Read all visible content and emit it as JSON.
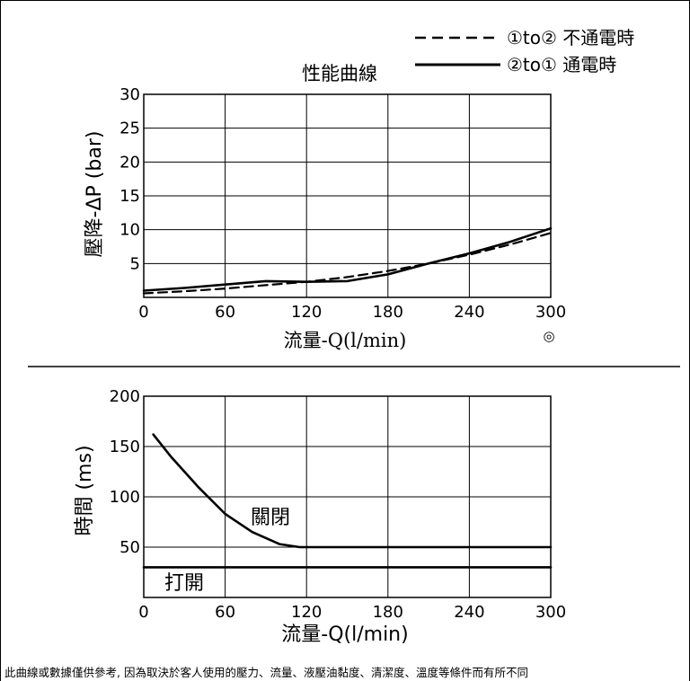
{
  "title": "性能曲線",
  "legend": [
    {
      "label": "①to② 不通電時",
      "style": "dashed"
    },
    {
      "label": "②to① 通電時",
      "style": "solid"
    }
  ],
  "symbol": "◎",
  "footnote": "此曲線或數據僅供參考, 因為取決於客人使用的壓力、流量、液壓油黏度、清潔度、溫度等條件而有所不同",
  "chart_data": [
    {
      "type": "line",
      "title": "性能曲線",
      "xlabel": "流量-Q(l/min)",
      "ylabel": "壓降-ΔP (bar)",
      "xlim": [
        0,
        300
      ],
      "ylim": [
        0,
        30
      ],
      "x_ticks": [
        0,
        60,
        120,
        180,
        240,
        300
      ],
      "y_ticks": [
        5,
        10,
        15,
        20,
        25,
        30
      ],
      "grid": true,
      "legend_position": "top-right",
      "series": [
        {
          "name": "①to② 不通電時",
          "style": "dashed",
          "x": [
            0,
            30,
            60,
            90,
            120,
            150,
            180,
            210,
            240,
            270,
            300
          ],
          "y": [
            0.6,
            0.9,
            1.3,
            1.8,
            2.3,
            3.0,
            3.9,
            5.0,
            6.3,
            7.8,
            9.5
          ]
        },
        {
          "name": "②to① 通電時",
          "style": "solid",
          "x": [
            0,
            30,
            60,
            90,
            120,
            150,
            180,
            210,
            240,
            270,
            300
          ],
          "y": [
            1.0,
            1.4,
            1.9,
            2.4,
            2.3,
            2.4,
            3.4,
            5.0,
            6.5,
            8.2,
            10.2
          ]
        }
      ]
    },
    {
      "type": "line",
      "xlabel": "流量-Q(l/min)",
      "ylabel": "時間 (ms)",
      "xlim": [
        0,
        300
      ],
      "ylim": [
        0,
        200
      ],
      "x_ticks": [
        0,
        60,
        120,
        180,
        240,
        300
      ],
      "y_ticks": [
        50,
        100,
        150,
        200
      ],
      "grid": true,
      "series": [
        {
          "name": "關閉",
          "style": "solid",
          "x": [
            7,
            20,
            40,
            60,
            80,
            100,
            115,
            130,
            180,
            240,
            300
          ],
          "y": [
            162,
            140,
            110,
            83,
            65,
            53,
            50,
            50,
            50,
            50,
            50
          ]
        },
        {
          "name": "打開",
          "style": "solid",
          "x": [
            0,
            300
          ],
          "y": [
            30,
            30
          ]
        }
      ]
    }
  ]
}
